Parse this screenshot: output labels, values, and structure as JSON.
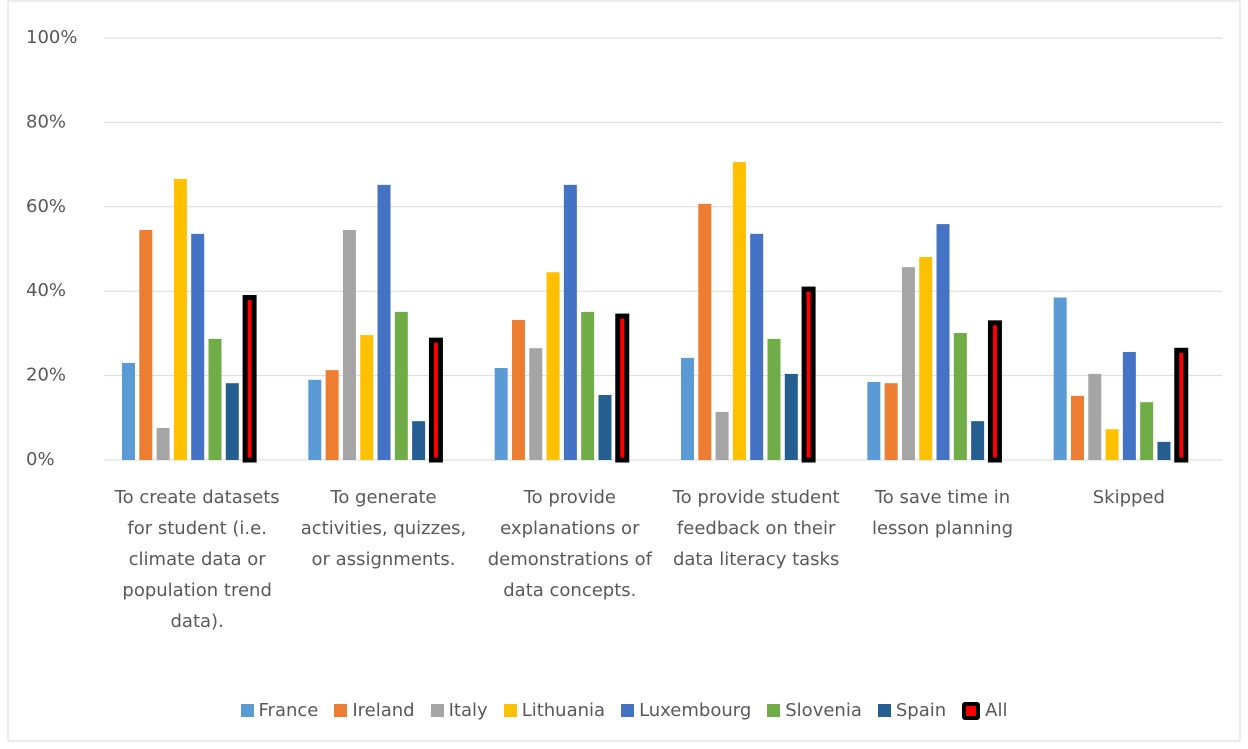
{
  "chart_data": {
    "type": "bar",
    "categories": [
      "To create datasets for student (i.e. climate data or population trend data).",
      "To generate activities, quizzes, or assignments.",
      "To provide explanations or demonstrations of data concepts.",
      "To provide student feedback on their data literacy tasks",
      "To save time in lesson planning",
      "Skipped"
    ],
    "series": [
      {
        "name": "France",
        "color": "#5b9bd5",
        "values": [
          23.0,
          19.0,
          21.8,
          24.2,
          18.5,
          38.5
        ]
      },
      {
        "name": "Ireland",
        "color": "#ed7d31",
        "values": [
          54.5,
          21.3,
          33.2,
          60.7,
          18.2,
          15.2
        ]
      },
      {
        "name": "Italy",
        "color": "#a5a5a5",
        "values": [
          7.6,
          54.5,
          26.5,
          11.4,
          45.7,
          20.4
        ]
      },
      {
        "name": "Lithuania",
        "color": "#ffc000",
        "values": [
          66.6,
          29.6,
          44.5,
          70.6,
          48.1,
          7.3
        ]
      },
      {
        "name": "Luxembourg",
        "color": "#4472c4",
        "values": [
          53.6,
          65.2,
          65.2,
          53.6,
          55.9,
          25.6
        ]
      },
      {
        "name": "Slovenia",
        "color": "#70ad47",
        "values": [
          28.7,
          35.1,
          35.1,
          28.7,
          30.1,
          13.7
        ]
      },
      {
        "name": "Spain",
        "color": "#255e91",
        "values": [
          18.2,
          9.2,
          15.4,
          20.4,
          9.2,
          4.3
        ]
      },
      {
        "name": "All",
        "color": "#ff0000",
        "edgecolor": "#000000",
        "values": [
          38.5,
          28.4,
          34.1,
          40.5,
          32.5,
          26.0
        ]
      }
    ],
    "ylim": [
      0,
      100
    ],
    "yticks": [
      {
        "value": 0,
        "label": "0%"
      },
      {
        "value": 20,
        "label": "20%"
      },
      {
        "value": 40,
        "label": "40%"
      },
      {
        "value": 60,
        "label": "60%"
      },
      {
        "value": 80,
        "label": "80%"
      },
      {
        "value": 100,
        "label": "100%"
      }
    ],
    "grid": true,
    "legend": "bottom"
  }
}
